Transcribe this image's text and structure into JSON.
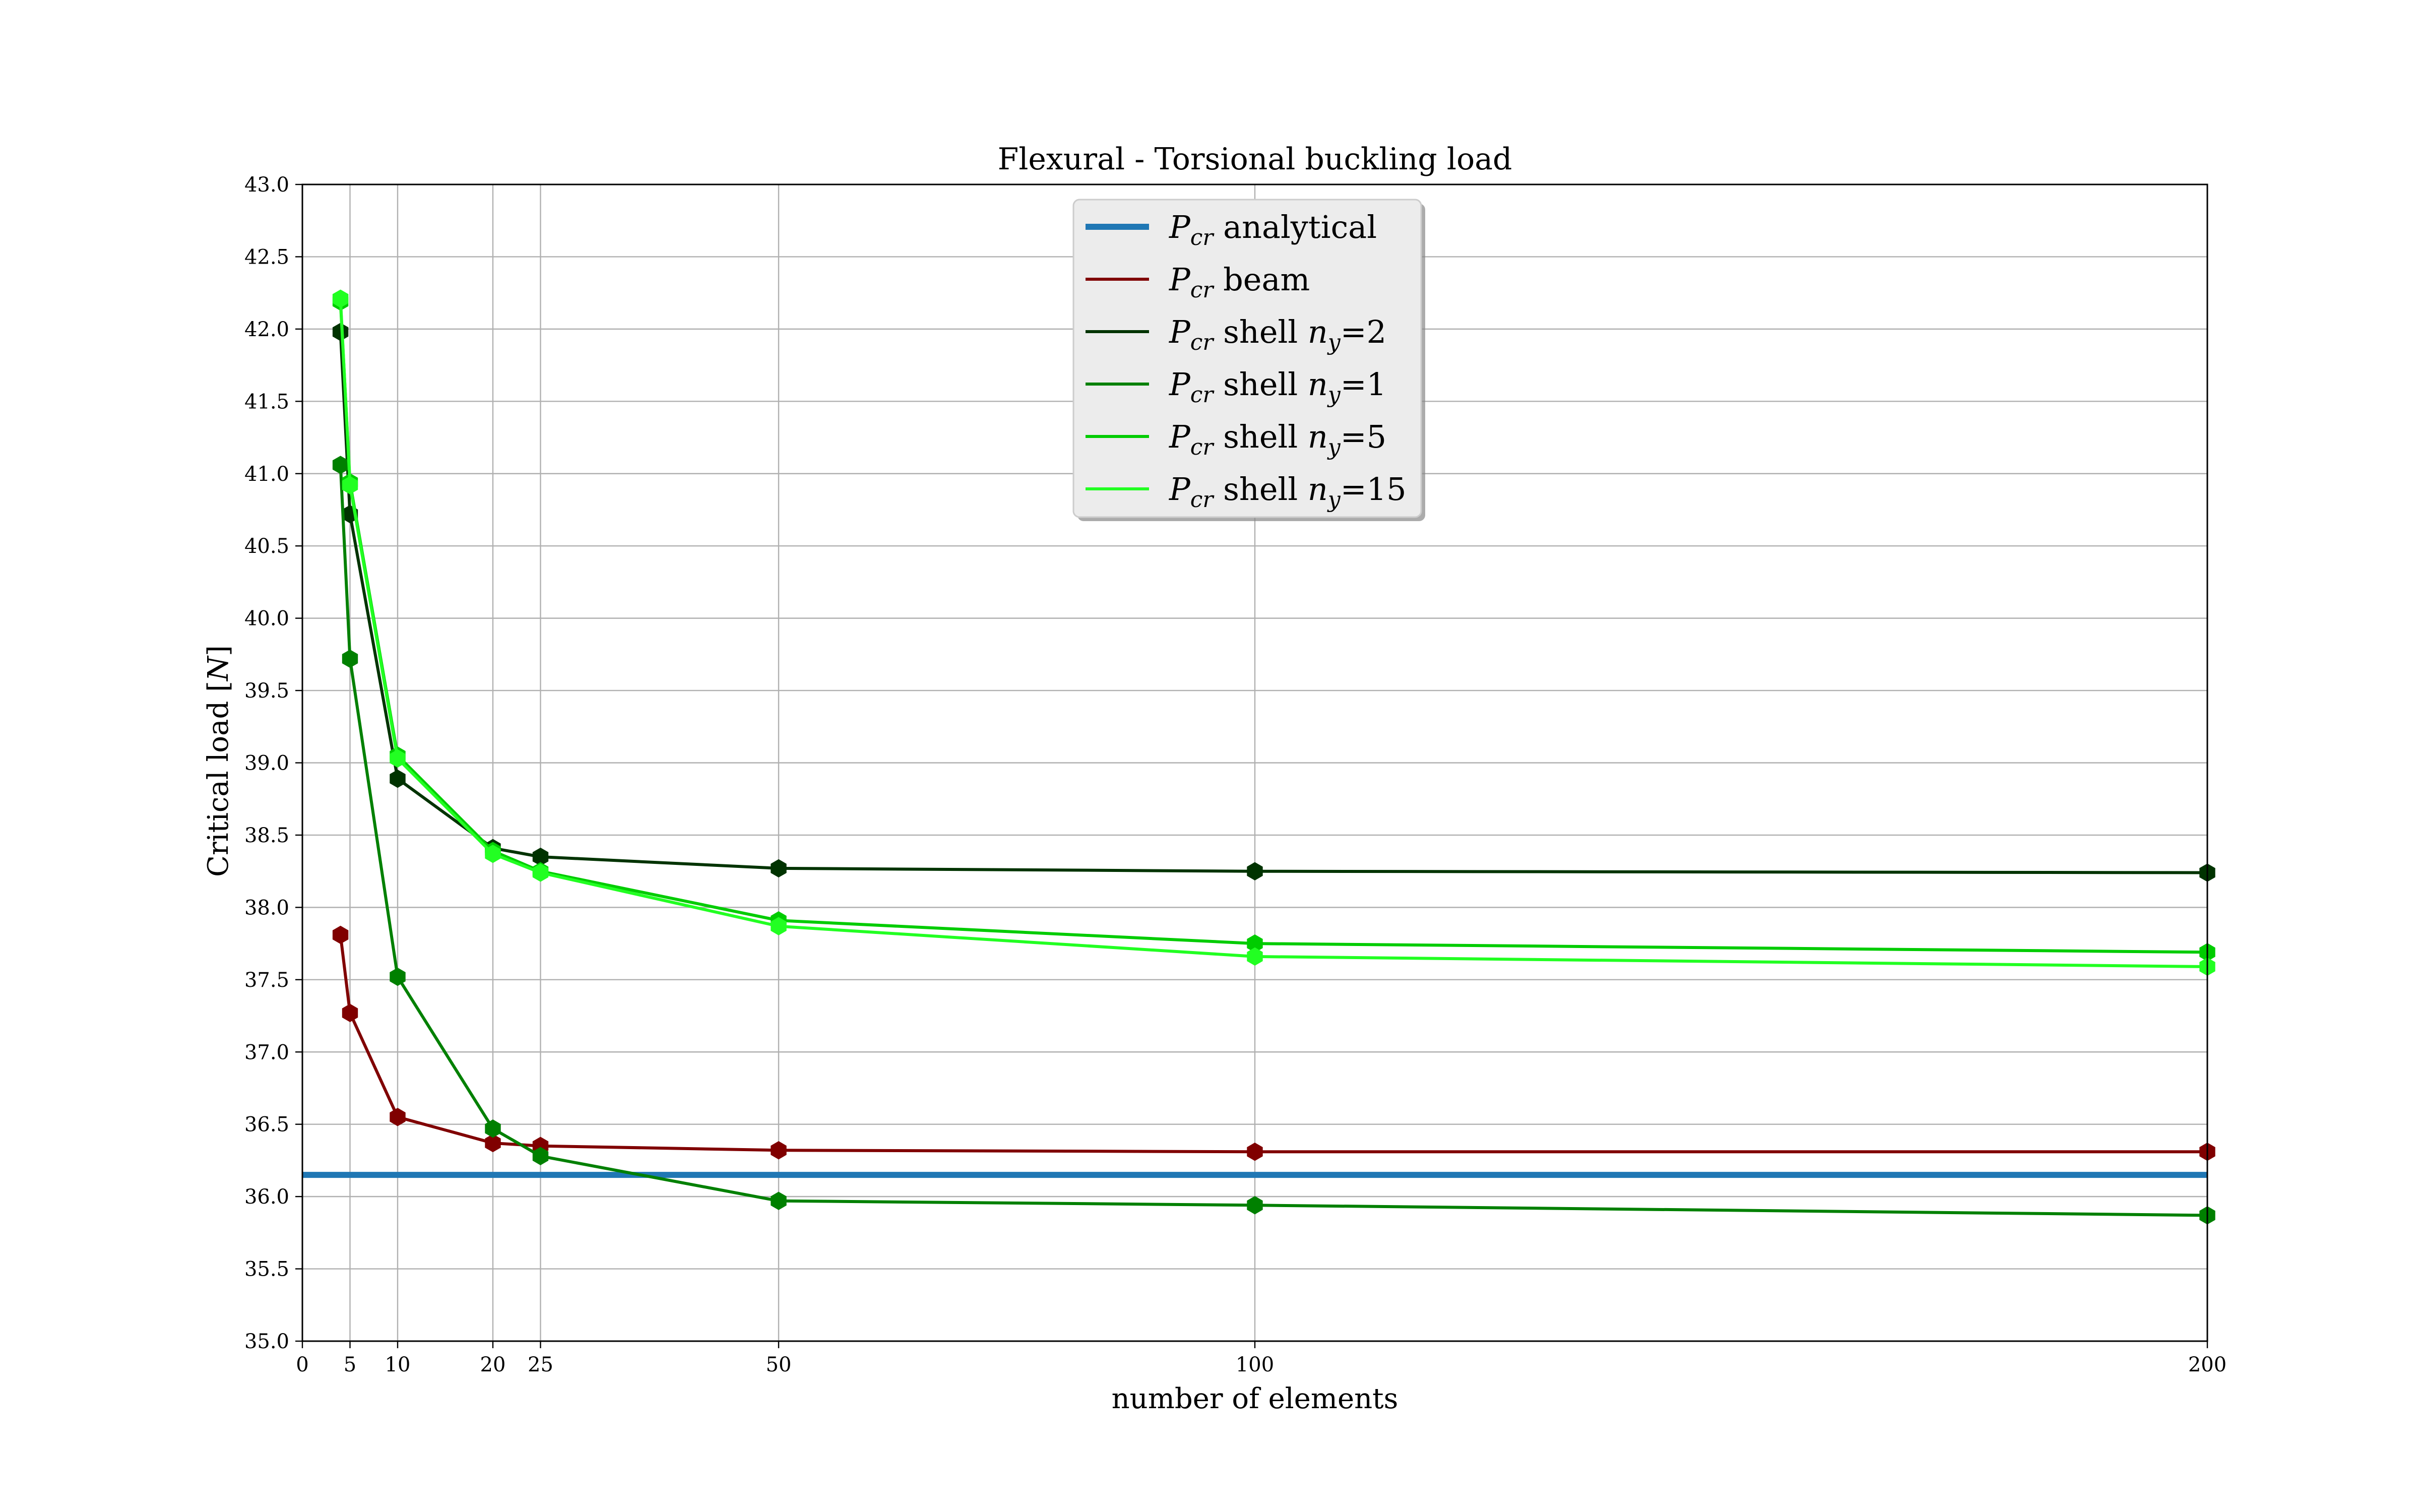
{
  "chart_data": {
    "type": "line",
    "title": "Flexural - Torsional buckling load",
    "xlabel": "number of elements",
    "ylabel": "Critical load [N]",
    "ylabel_text": "Critical load [",
    "ylabel_unit": "N",
    "ylabel_close": "]",
    "xlim": [
      0,
      200
    ],
    "ylim": [
      35.0,
      43.0
    ],
    "xticks": [
      0,
      5,
      10,
      20,
      25,
      50,
      100,
      200
    ],
    "yticks": [
      35.0,
      35.5,
      36.0,
      36.5,
      37.0,
      37.5,
      38.0,
      38.5,
      39.0,
      39.5,
      40.0,
      40.5,
      41.0,
      41.5,
      42.0,
      42.5,
      43.0
    ],
    "ytick_labels": [
      "35.0",
      "35.5",
      "36.0",
      "36.5",
      "37.0",
      "37.5",
      "38.0",
      "38.5",
      "39.0",
      "39.5",
      "40.0",
      "40.5",
      "41.0",
      "41.5",
      "42.0",
      "42.5",
      "43.0"
    ],
    "grid": true,
    "legend_position": "top-center",
    "series": [
      {
        "name": "P_cr analytical",
        "label_parts": [
          "",
          " analytical",
          "",
          ""
        ],
        "color": "#1f77b4",
        "style": "hline",
        "x": [
          0,
          200
        ],
        "y": [
          36.15,
          36.15
        ]
      },
      {
        "name": "P_cr beam",
        "label_parts": [
          "",
          " beam",
          "",
          ""
        ],
        "color": "#800000",
        "style": "line-markers",
        "x": [
          4,
          5,
          10,
          20,
          25,
          50,
          100,
          200
        ],
        "y": [
          37.81,
          37.27,
          36.55,
          36.37,
          36.35,
          36.32,
          36.31,
          36.31
        ]
      },
      {
        "name": "P_cr shell n_y=2",
        "label_parts": [
          " shell ",
          "",
          "=2",
          "y"
        ],
        "color": "#003300",
        "style": "line-markers",
        "x": [
          4,
          5,
          10,
          20,
          25,
          50,
          100,
          200
        ],
        "y": [
          41.98,
          40.72,
          38.89,
          38.41,
          38.35,
          38.27,
          38.25,
          38.24
        ]
      },
      {
        "name": "P_cr shell n_y=1",
        "label_parts": [
          " shell ",
          "",
          "=1",
          "y"
        ],
        "color": "#008000",
        "style": "line-markers",
        "x": [
          4,
          5,
          10,
          20,
          25,
          50,
          100,
          200
        ],
        "y": [
          41.06,
          39.72,
          37.52,
          36.47,
          36.28,
          35.97,
          35.94,
          35.87
        ]
      },
      {
        "name": "P_cr shell n_y=5",
        "label_parts": [
          " shell ",
          "",
          "=5",
          "y"
        ],
        "color": "#00cc00",
        "style": "line-markers",
        "x": [
          4,
          5,
          10,
          20,
          25,
          50,
          100,
          200
        ],
        "y": [
          42.19,
          40.94,
          39.05,
          38.39,
          38.25,
          37.91,
          37.75,
          37.69
        ]
      },
      {
        "name": "P_cr shell n_y=15",
        "label_parts": [
          " shell ",
          "",
          "=15",
          "y"
        ],
        "color": "#22ff22",
        "style": "line-markers",
        "x": [
          4,
          5,
          10,
          20,
          25,
          50,
          100,
          200
        ],
        "y": [
          42.21,
          40.92,
          39.03,
          38.37,
          38.24,
          37.87,
          37.66,
          37.59
        ]
      }
    ]
  }
}
